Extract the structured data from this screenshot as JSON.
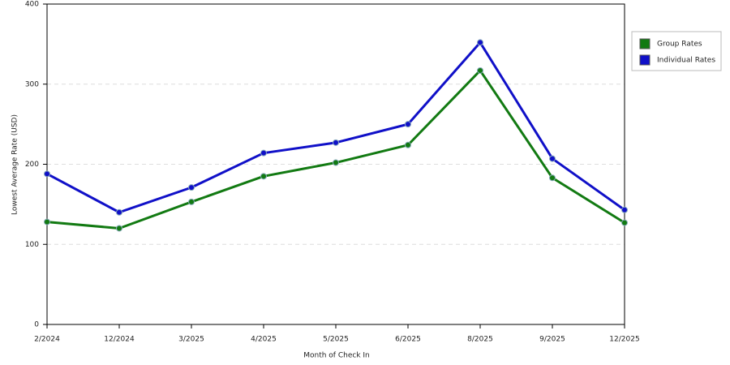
{
  "chart_data": {
    "type": "line",
    "x_label": "Month of Check In",
    "y_label": "Lowest Average Rate (USD)",
    "categories": [
      "2/2024",
      "12/2024",
      "3/2025",
      "4/2025",
      "5/2025",
      "6/2025",
      "8/2025",
      "9/2025",
      "12/2025"
    ],
    "series": [
      {
        "name": "Group Rates",
        "color": "#127a12",
        "values": [
          128,
          120,
          153,
          185,
          202,
          224,
          317,
          183,
          127
        ]
      },
      {
        "name": "Individual Rates",
        "color": "#1010c8",
        "values": [
          188,
          140,
          171,
          214,
          227,
          250,
          352,
          207,
          143
        ]
      }
    ],
    "ylim": [
      0,
      400
    ],
    "yticks": [
      0,
      100,
      200,
      300,
      400
    ],
    "grid": true,
    "legend": "right"
  }
}
